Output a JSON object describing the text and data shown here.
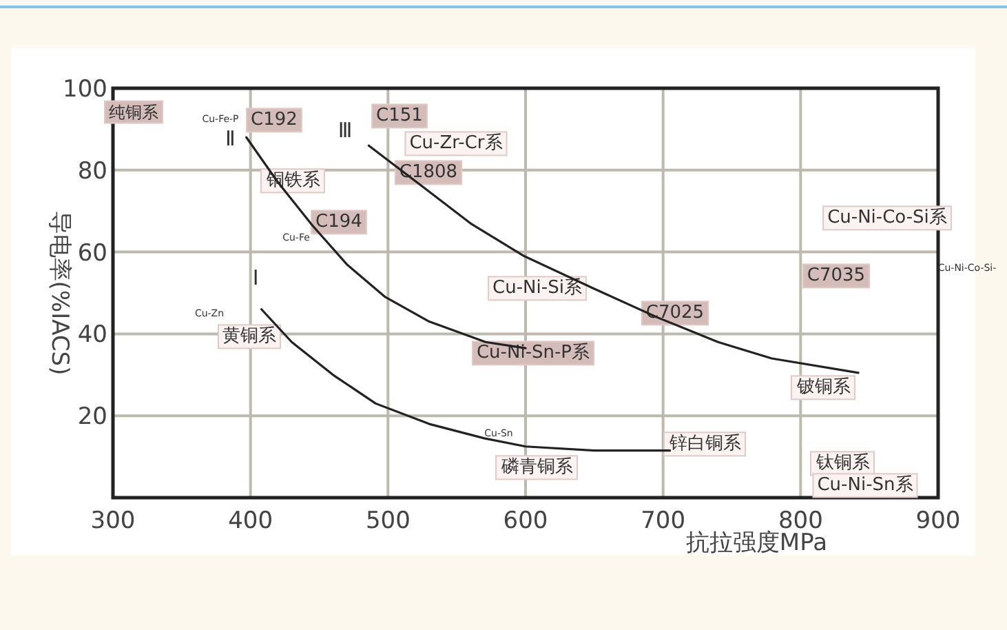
{
  "chart_data": {
    "type": "line",
    "xlabel": "抗拉强度MPa",
    "ylabel": "导电率(%IACS)",
    "xlim": [
      300,
      900
    ],
    "xticks": [
      300,
      400,
      500,
      600,
      700,
      800,
      900
    ],
    "ylim": [
      0,
      100
    ],
    "yticks": [
      20,
      40,
      60,
      80,
      100
    ],
    "grid": true,
    "marker": "none",
    "line_style": "solid",
    "series": [
      {
        "name": "Ⅰ",
        "color": "#222222",
        "x": [
          408,
          430,
          460,
          491,
          530,
          570,
          600,
          650,
          705
        ],
        "values": [
          46,
          38,
          30,
          23,
          18,
          14.5,
          12.5,
          11.5,
          11.5
        ]
      },
      {
        "name": "Ⅱ",
        "color": "#222222",
        "x": [
          397,
          420,
          445,
          470,
          498,
          530,
          571,
          600
        ],
        "values": [
          88,
          77,
          66.5,
          57,
          49,
          43,
          38,
          36.5
        ]
      },
      {
        "name": "Ⅲ",
        "color": "#222222",
        "x": [
          486,
          525,
          560,
          599,
          650,
          696,
          740,
          779,
          842
        ],
        "values": [
          86,
          76,
          67,
          59,
          51,
          44,
          38,
          34,
          30.5
        ]
      }
    ],
    "annotations": [
      "纯铜系",
      "Cu-Fe-P",
      "C192",
      "C151",
      "Cu-Zr-Cr系",
      "C1808",
      "铜铁系",
      "C194",
      "Cu-Fe",
      "Cu-Zn",
      "黄铜系",
      "Cu-Ni-Si系",
      "C7025",
      "Cu-Ni-Sn-P系",
      "Cu-Ni-Co-Si系",
      "C7035",
      "Cu-Ni-Co-Si-",
      "铍铜系",
      "Cu-Sn",
      "锌白铜系",
      "磷青铜系",
      "钛铜系",
      "Cu-Ni-Sn系"
    ]
  }
}
